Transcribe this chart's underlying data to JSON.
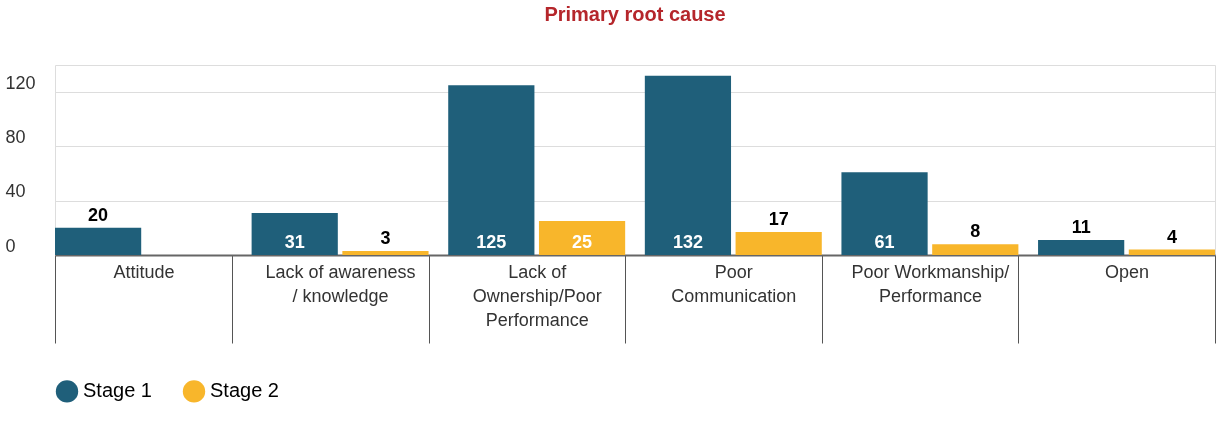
{
  "chart_data": {
    "type": "bar",
    "title": "Primary root cause",
    "categories": [
      "Attitude",
      "Lack of awareness / knowledge",
      "Lack of Ownership/Poor Performance",
      "Poor Communication",
      "Poor Workmanship/Performance",
      "Open"
    ],
    "series": [
      {
        "name": "Stage 1",
        "color": "#1f5f7a",
        "values": [
          20,
          31,
          125,
          132,
          61,
          11
        ]
      },
      {
        "name": "Stage 2",
        "color": "#f8b62b",
        "values": [
          null,
          3,
          25,
          17,
          8,
          4
        ]
      }
    ],
    "ylim": [
      0,
      140
    ],
    "yticks": [
      0,
      40,
      80,
      120
    ],
    "grid": "y",
    "legend": "bottom",
    "data_labels": true
  }
}
